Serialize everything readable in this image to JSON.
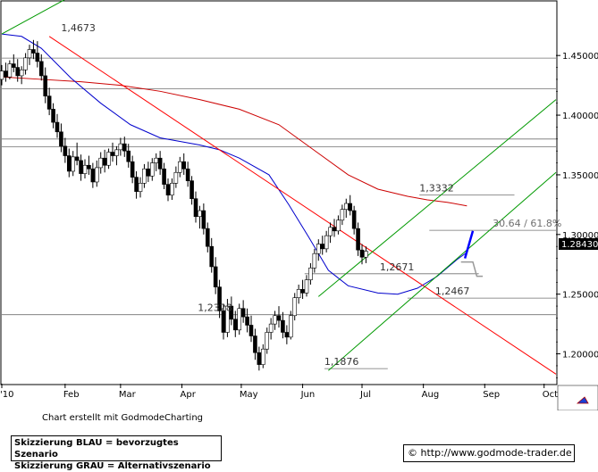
{
  "credit": "Chart erstellt mit GodmodeCharting",
  "legend": {
    "blue": "Skizzierung BLAU = bevorzugtes Szenario",
    "gray": "Skizzierung GRAU = Alternativszenario"
  },
  "url": "© http://www.godmode-trader.de",
  "chart_data": {
    "type": "candlestick",
    "title": "",
    "ylim": [
      1.175,
      1.495
    ],
    "yticks": [
      "1.45000",
      "1.40000",
      "1.35000",
      "1.30000",
      "1.25000",
      "1.20000"
    ],
    "ytick_values": [
      1.45,
      1.4,
      1.35,
      1.3,
      1.25,
      1.2
    ],
    "xticks": [
      "'10",
      "Feb",
      "Mar",
      "Apr",
      "May",
      "Jun",
      "Jul",
      "Aug",
      "Sep",
      "Oct"
    ],
    "xtick_days": [
      0,
      32,
      60,
      91,
      121,
      152,
      182,
      213,
      244,
      274
    ],
    "x_range_days": [
      0,
      280
    ],
    "last_price": "1.28430",
    "annotations": [
      {
        "text": "1,4673",
        "day": 30,
        "value": 1.4673
      },
      {
        "text": "1,3332",
        "day": 211,
        "value": 1.3332
      },
      {
        "text": "1,2671",
        "day": 191,
        "value": 1.2671
      },
      {
        "text": "1,2467",
        "day": 219,
        "value": 1.2467
      },
      {
        "text": "1,2328",
        "day": 99,
        "value": 1.2328
      },
      {
        "text": "1,1876",
        "day": 163,
        "value": 1.1876
      },
      {
        "text": "30.64 / 61.8%",
        "day": 248,
        "value": 1.3035
      }
    ],
    "horizontal_levels": [
      {
        "value": 1.4478,
        "day_from": 0,
        "day_to": 280
      },
      {
        "value": 1.422,
        "day_from": 0,
        "day_to": 280
      },
      {
        "value": 1.38,
        "day_from": 0,
        "day_to": 280
      },
      {
        "value": 1.3735,
        "day_from": 0,
        "day_to": 280
      },
      {
        "value": 1.3332,
        "day_from": 211,
        "day_to": 259
      },
      {
        "value": 1.3035,
        "day_from": 216,
        "day_to": 280
      },
      {
        "value": 1.2671,
        "day_from": 153,
        "day_to": 241
      },
      {
        "value": 1.2467,
        "day_from": 205,
        "day_to": 280
      },
      {
        "value": 1.2328,
        "day_from": 0,
        "day_to": 280
      },
      {
        "value": 1.1876,
        "day_from": 163,
        "day_to": 195
      }
    ],
    "trend_lines": [
      {
        "color": "#ff0000",
        "from": [
          24,
          1.466
        ],
        "to": [
          280,
          1.183
        ]
      },
      {
        "color": "#009900",
        "from": [
          165,
          1.186
        ],
        "to": [
          280,
          1.352
        ]
      },
      {
        "color": "#009900",
        "from": [
          160,
          1.248
        ],
        "to": [
          280,
          1.413
        ]
      },
      {
        "color": "#009900",
        "from": [
          0,
          1.468
        ],
        "to": [
          32,
          1.497
        ]
      }
    ],
    "scenario_blue": {
      "color": "#0000ff",
      "points": [
        [
          234,
          1.28
        ],
        [
          238,
          1.303
        ]
      ]
    },
    "scenario_gray": {
      "color": "#999999",
      "points": [
        [
          232,
          1.277
        ],
        [
          238,
          1.277
        ],
        [
          240,
          1.265
        ],
        [
          243,
          1.265
        ]
      ]
    },
    "moving_averages": [
      {
        "color": "#cc0000",
        "points": [
          [
            0,
            1.432
          ],
          [
            20,
            1.43
          ],
          [
            40,
            1.428
          ],
          [
            60,
            1.425
          ],
          [
            80,
            1.42
          ],
          [
            100,
            1.413
          ],
          [
            120,
            1.405
          ],
          [
            140,
            1.392
          ],
          [
            160,
            1.368
          ],
          [
            175,
            1.35
          ],
          [
            190,
            1.338
          ],
          [
            205,
            1.332
          ],
          [
            215,
            1.329
          ],
          [
            225,
            1.327
          ],
          [
            235,
            1.324
          ]
        ]
      },
      {
        "color": "#0000cc",
        "points": [
          [
            0,
            1.468
          ],
          [
            10,
            1.466
          ],
          [
            20,
            1.456
          ],
          [
            35,
            1.431
          ],
          [
            50,
            1.41
          ],
          [
            65,
            1.392
          ],
          [
            80,
            1.381
          ],
          [
            90,
            1.378
          ],
          [
            100,
            1.375
          ],
          [
            110,
            1.371
          ],
          [
            120,
            1.364
          ],
          [
            135,
            1.35
          ],
          [
            145,
            1.325
          ],
          [
            155,
            1.298
          ],
          [
            165,
            1.27
          ],
          [
            175,
            1.257
          ],
          [
            190,
            1.251
          ],
          [
            200,
            1.25
          ],
          [
            210,
            1.255
          ],
          [
            220,
            1.265
          ],
          [
            230,
            1.279
          ],
          [
            235,
            1.285
          ]
        ]
      }
    ],
    "ohlc": [
      [
        0,
        1.43,
        1.442,
        1.425,
        1.437
      ],
      [
        2,
        1.437,
        1.444,
        1.428,
        1.432
      ],
      [
        4,
        1.432,
        1.446,
        1.43,
        1.443
      ],
      [
        6,
        1.443,
        1.451,
        1.436,
        1.44
      ],
      [
        8,
        1.44,
        1.447,
        1.428,
        1.433
      ],
      [
        10,
        1.433,
        1.441,
        1.426,
        1.438
      ],
      [
        12,
        1.438,
        1.452,
        1.434,
        1.448
      ],
      [
        14,
        1.448,
        1.459,
        1.442,
        1.455
      ],
      [
        16,
        1.455,
        1.463,
        1.447,
        1.452
      ],
      [
        18,
        1.452,
        1.462,
        1.44,
        1.445
      ],
      [
        20,
        1.445,
        1.451,
        1.429,
        1.433
      ],
      [
        22,
        1.433,
        1.44,
        1.41,
        1.416
      ],
      [
        24,
        1.416,
        1.423,
        1.4,
        1.405
      ],
      [
        26,
        1.405,
        1.41,
        1.389,
        1.394
      ],
      [
        28,
        1.394,
        1.401,
        1.381,
        1.386
      ],
      [
        30,
        1.386,
        1.393,
        1.369,
        1.374
      ],
      [
        32,
        1.374,
        1.381,
        1.36,
        1.366
      ],
      [
        34,
        1.366,
        1.372,
        1.348,
        1.353
      ],
      [
        36,
        1.353,
        1.37,
        1.349,
        1.365
      ],
      [
        38,
        1.365,
        1.377,
        1.358,
        1.362
      ],
      [
        40,
        1.362,
        1.367,
        1.345,
        1.351
      ],
      [
        42,
        1.351,
        1.363,
        1.347,
        1.358
      ],
      [
        44,
        1.358,
        1.366,
        1.35,
        1.355
      ],
      [
        46,
        1.355,
        1.36,
        1.339,
        1.344
      ],
      [
        48,
        1.344,
        1.362,
        1.34,
        1.356
      ],
      [
        50,
        1.356,
        1.369,
        1.351,
        1.364
      ],
      [
        52,
        1.364,
        1.371,
        1.352,
        1.358
      ],
      [
        54,
        1.358,
        1.372,
        1.355,
        1.369
      ],
      [
        56,
        1.369,
        1.377,
        1.361,
        1.366
      ],
      [
        58,
        1.366,
        1.374,
        1.358,
        1.371
      ],
      [
        60,
        1.371,
        1.381,
        1.366,
        1.376
      ],
      [
        62,
        1.376,
        1.382,
        1.365,
        1.37
      ],
      [
        64,
        1.37,
        1.376,
        1.356,
        1.361
      ],
      [
        66,
        1.361,
        1.366,
        1.343,
        1.348
      ],
      [
        68,
        1.348,
        1.353,
        1.33,
        1.336
      ],
      [
        70,
        1.336,
        1.348,
        1.331,
        1.343
      ],
      [
        72,
        1.343,
        1.359,
        1.339,
        1.355
      ],
      [
        74,
        1.355,
        1.361,
        1.344,
        1.349
      ],
      [
        76,
        1.349,
        1.364,
        1.345,
        1.36
      ],
      [
        78,
        1.36,
        1.368,
        1.353,
        1.364
      ],
      [
        80,
        1.364,
        1.37,
        1.35,
        1.355
      ],
      [
        82,
        1.355,
        1.36,
        1.338,
        1.342
      ],
      [
        84,
        1.342,
        1.347,
        1.328,
        1.333
      ],
      [
        86,
        1.333,
        1.347,
        1.329,
        1.343
      ],
      [
        88,
        1.343,
        1.357,
        1.339,
        1.352
      ],
      [
        90,
        1.352,
        1.365,
        1.348,
        1.361
      ],
      [
        92,
        1.361,
        1.368,
        1.35,
        1.355
      ],
      [
        94,
        1.355,
        1.361,
        1.34,
        1.345
      ],
      [
        96,
        1.345,
        1.349,
        1.325,
        1.33
      ],
      [
        98,
        1.33,
        1.336,
        1.31,
        1.315
      ],
      [
        100,
        1.315,
        1.324,
        1.305,
        1.32
      ],
      [
        102,
        1.32,
        1.326,
        1.3,
        1.305
      ],
      [
        104,
        1.305,
        1.31,
        1.285,
        1.29
      ],
      [
        106,
        1.29,
        1.297,
        1.268,
        1.273
      ],
      [
        108,
        1.273,
        1.281,
        1.25,
        1.256
      ],
      [
        110,
        1.256,
        1.262,
        1.23,
        1.236
      ],
      [
        112,
        1.236,
        1.242,
        1.212,
        1.218
      ],
      [
        114,
        1.218,
        1.246,
        1.214,
        1.24
      ],
      [
        116,
        1.24,
        1.248,
        1.224,
        1.229
      ],
      [
        118,
        1.229,
        1.236,
        1.214,
        1.22
      ],
      [
        120,
        1.22,
        1.242,
        1.216,
        1.238
      ],
      [
        122,
        1.238,
        1.245,
        1.226,
        1.231
      ],
      [
        124,
        1.231,
        1.238,
        1.218,
        1.224
      ],
      [
        126,
        1.224,
        1.232,
        1.21,
        1.215
      ],
      [
        128,
        1.215,
        1.221,
        1.195,
        1.201
      ],
      [
        130,
        1.201,
        1.206,
        1.186,
        1.191
      ],
      [
        132,
        1.191,
        1.208,
        1.188,
        1.204
      ],
      [
        134,
        1.204,
        1.222,
        1.2,
        1.218
      ],
      [
        136,
        1.218,
        1.23,
        1.212,
        1.225
      ],
      [
        138,
        1.225,
        1.236,
        1.22,
        1.232
      ],
      [
        140,
        1.232,
        1.24,
        1.222,
        1.228
      ],
      [
        142,
        1.228,
        1.235,
        1.213,
        1.218
      ],
      [
        144,
        1.218,
        1.224,
        1.208,
        1.214
      ],
      [
        146,
        1.214,
        1.236,
        1.212,
        1.232
      ],
      [
        148,
        1.232,
        1.251,
        1.228,
        1.247
      ],
      [
        150,
        1.247,
        1.258,
        1.242,
        1.254
      ],
      [
        152,
        1.254,
        1.262,
        1.246,
        1.251
      ],
      [
        154,
        1.251,
        1.266,
        1.248,
        1.262
      ],
      [
        156,
        1.262,
        1.276,
        1.258,
        1.272
      ],
      [
        158,
        1.272,
        1.288,
        1.268,
        1.284
      ],
      [
        160,
        1.284,
        1.296,
        1.278,
        1.292
      ],
      [
        162,
        1.292,
        1.299,
        1.283,
        1.288
      ],
      [
        164,
        1.288,
        1.303,
        1.285,
        1.299
      ],
      [
        166,
        1.299,
        1.31,
        1.293,
        1.306
      ],
      [
        168,
        1.306,
        1.313,
        1.298,
        1.303
      ],
      [
        170,
        1.303,
        1.316,
        1.3,
        1.312
      ],
      [
        172,
        1.312,
        1.325,
        1.308,
        1.321
      ],
      [
        174,
        1.321,
        1.33,
        1.314,
        1.326
      ],
      [
        176,
        1.326,
        1.333,
        1.316,
        1.32
      ],
      [
        178,
        1.32,
        1.324,
        1.3,
        1.305
      ],
      [
        180,
        1.305,
        1.31,
        1.282,
        1.287
      ],
      [
        182,
        1.287,
        1.292,
        1.275,
        1.281
      ],
      [
        184,
        1.281,
        1.29,
        1.276,
        1.286
      ]
    ]
  }
}
